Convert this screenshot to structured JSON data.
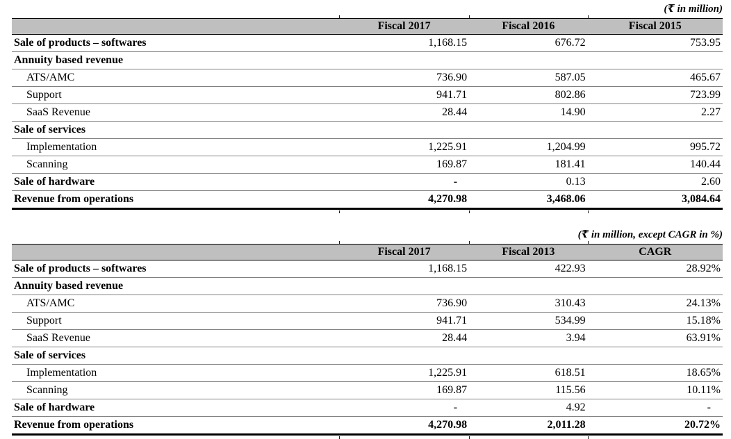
{
  "colors": {
    "header_bg": "#bfbfbf",
    "row_separator": "#808080",
    "border": "#000000",
    "text": "#000000"
  },
  "tables": [
    {
      "note": "(₹ in million)",
      "columns": [
        "",
        "Fiscal 2017",
        "Fiscal 2016",
        "Fiscal 2015"
      ],
      "rows": [
        {
          "label": "Sale of products – softwares",
          "style": "bold",
          "indent": false,
          "values": [
            "1,168.15",
            "676.72",
            "753.95"
          ]
        },
        {
          "label": "Annuity based revenue",
          "style": "bold",
          "indent": false,
          "values": [
            "",
            "",
            ""
          ]
        },
        {
          "label": "ATS/AMC",
          "style": "plain",
          "indent": true,
          "values": [
            "736.90",
            "587.05",
            "465.67"
          ]
        },
        {
          "label": "Support",
          "style": "plain",
          "indent": true,
          "values": [
            "941.71",
            "802.86",
            "723.99"
          ]
        },
        {
          "label": "SaaS Revenue",
          "style": "plain",
          "indent": true,
          "values": [
            "28.44",
            "14.90",
            "2.27"
          ]
        },
        {
          "label": "Sale of services",
          "style": "bold",
          "indent": false,
          "values": [
            "",
            "",
            ""
          ]
        },
        {
          "label": "Implementation",
          "style": "plain",
          "indent": true,
          "values": [
            "1,225.91",
            "1,204.99",
            "995.72"
          ]
        },
        {
          "label": "Scanning",
          "style": "plain",
          "indent": true,
          "values": [
            "169.87",
            "181.41",
            "140.44"
          ]
        },
        {
          "label": "Sale of hardware",
          "style": "bold",
          "indent": false,
          "values": [
            "-",
            "0.13",
            "2.60"
          ]
        },
        {
          "label": "Revenue from operations",
          "style": "total",
          "indent": false,
          "values": [
            "4,270.98",
            "3,468.06",
            "3,084.64"
          ]
        }
      ]
    },
    {
      "note": "(₹ in million, except CAGR in %)",
      "columns": [
        "",
        "Fiscal 2017",
        "Fiscal 2013",
        "CAGR"
      ],
      "rows": [
        {
          "label": "Sale of products – softwares",
          "style": "bold",
          "indent": false,
          "values": [
            "1,168.15",
            "422.93",
            "28.92%"
          ]
        },
        {
          "label": "Annuity based revenue",
          "style": "bold",
          "indent": false,
          "values": [
            "",
            "",
            ""
          ]
        },
        {
          "label": "ATS/AMC",
          "style": "plain",
          "indent": true,
          "values": [
            "736.90",
            "310.43",
            "24.13%"
          ]
        },
        {
          "label": "Support",
          "style": "plain",
          "indent": true,
          "values": [
            "941.71",
            "534.99",
            "15.18%"
          ]
        },
        {
          "label": "SaaS Revenue",
          "style": "plain",
          "indent": true,
          "values": [
            "28.44",
            "3.94",
            "63.91%"
          ]
        },
        {
          "label": "Sale of services",
          "style": "bold",
          "indent": false,
          "values": [
            "",
            "",
            ""
          ]
        },
        {
          "label": "Implementation",
          "style": "plain",
          "indent": true,
          "values": [
            "1,225.91",
            "618.51",
            "18.65%"
          ]
        },
        {
          "label": "Scanning",
          "style": "plain",
          "indent": true,
          "values": [
            "169.87",
            "115.56",
            "10.11%"
          ]
        },
        {
          "label": "Sale of hardware",
          "style": "bold",
          "indent": false,
          "values": [
            "-",
            "4.92",
            "-"
          ]
        },
        {
          "label": "Revenue from operations",
          "style": "total",
          "indent": false,
          "values": [
            "4,270.98",
            "2,011.28",
            "20.72%"
          ]
        }
      ]
    }
  ]
}
